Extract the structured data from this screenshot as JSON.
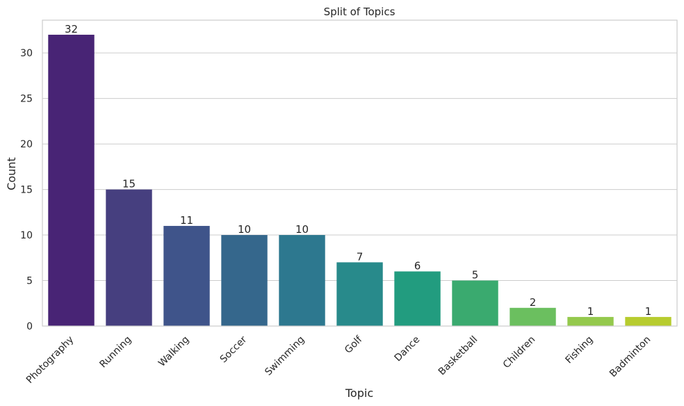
{
  "chart_data": {
    "type": "bar",
    "title": "Split of Topics",
    "xlabel": "Topic",
    "ylabel": "Count",
    "categories": [
      "Photography",
      "Running",
      "Walking",
      "Soccer",
      "Swimming",
      "Golf",
      "Dance",
      "Basketball",
      "Children",
      "Fishing",
      "Badminton"
    ],
    "values": [
      32,
      15,
      11,
      10,
      10,
      7,
      6,
      5,
      2,
      1,
      1
    ],
    "colors": [
      "#482475",
      "#463f7f",
      "#3f548a",
      "#35678c",
      "#2d788f",
      "#288a8b",
      "#229c7f",
      "#3aaa6f",
      "#6bbf5f",
      "#94c94d",
      "#b7cc2f"
    ],
    "yticks": [
      0,
      5,
      10,
      15,
      20,
      25,
      30
    ],
    "ylim": [
      0,
      33.6
    ],
    "grid": "horizontal",
    "legend": "none"
  }
}
